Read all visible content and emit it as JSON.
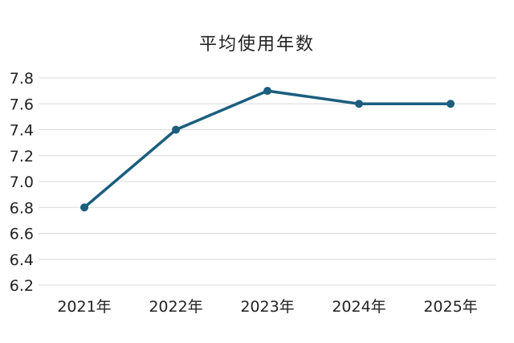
{
  "chart_data": {
    "type": "line",
    "title": "平均使用年数",
    "xlabel": "",
    "ylabel": "",
    "categories": [
      "2021年",
      "2022年",
      "2023年",
      "2024年",
      "2025年"
    ],
    "series": [
      {
        "values": [
          6.8,
          7.4,
          7.7,
          7.6,
          7.6
        ]
      }
    ],
    "ylim": [
      6.2,
      7.8
    ],
    "yticks": [
      "6.2",
      "6.4",
      "6.6",
      "6.8",
      "7.0",
      "7.2",
      "7.4",
      "7.6",
      "7.8"
    ],
    "grid": true,
    "legend": "none",
    "colors": {
      "line": "#1b5e7e",
      "grid": "#d9d9d9",
      "text": "#222222"
    }
  }
}
